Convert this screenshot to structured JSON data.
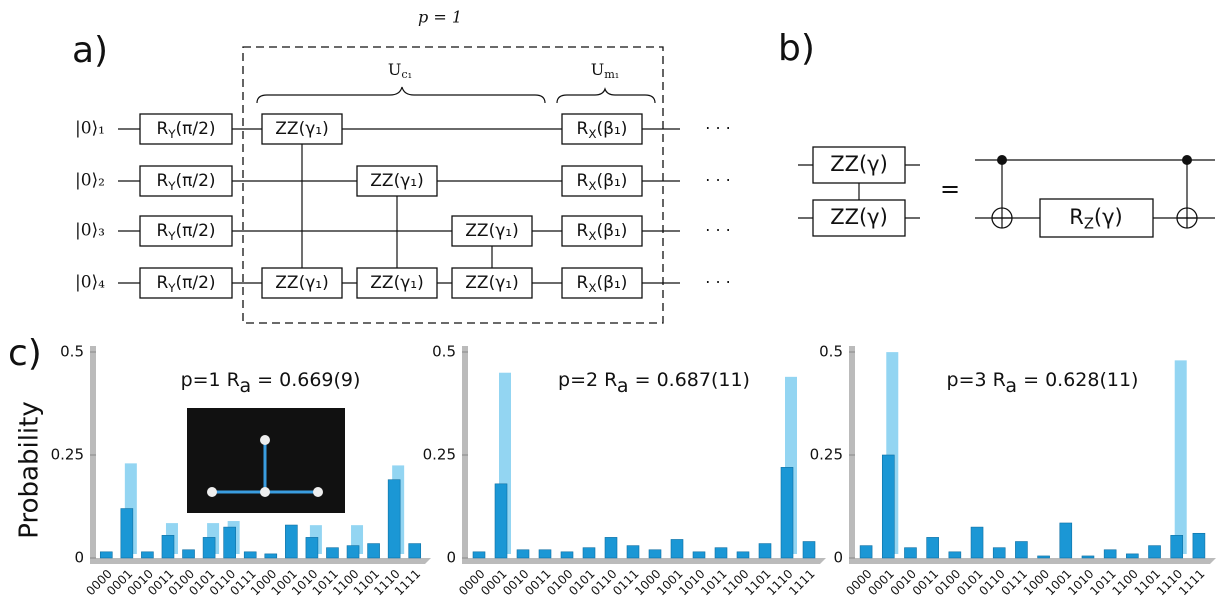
{
  "panels": {
    "a": "a)",
    "b": "b)",
    "c": "c)"
  },
  "circuit": {
    "p_label": "p = 1",
    "uc": {
      "base": "U",
      "sub": "c₁"
    },
    "um": {
      "base": "U",
      "sub": "m₁"
    },
    "qubits": [
      "|0⟩₁",
      "|0⟩₂",
      "|0⟩₃",
      "|0⟩₄"
    ],
    "ry": {
      "base": "R",
      "sub": "Y",
      "arg": "(π/2)"
    },
    "zz": "ZZ(γ₁)",
    "rx": {
      "base": "R",
      "sub": "X",
      "arg": "(β₁)"
    },
    "ellipsis": "· · ·"
  },
  "identity": {
    "zz": "ZZ(γ)",
    "equals": "=",
    "rz": {
      "base": "R",
      "sub": "Z",
      "arg": "(γ)"
    }
  },
  "chart_data": [
    {
      "type": "bar",
      "title": {
        "prefix": "p=1  R",
        "sub": "a",
        "suffix": " = 0.669(9)"
      },
      "ylabel": "Probability",
      "categories": [
        "0000",
        "0001",
        "0010",
        "0011",
        "0100",
        "0101",
        "0110",
        "0111",
        "1000",
        "1001",
        "1010",
        "1011",
        "1100",
        "1101",
        "1110",
        "1111"
      ],
      "series": [
        {
          "color": "#93d5f2",
          "values": [
            0,
            0.22,
            0,
            0.075,
            0,
            0.075,
            0.08,
            0,
            0,
            0,
            0.07,
            0,
            0.07,
            0,
            0.215,
            0
          ]
        },
        {
          "color": "#1b97d5",
          "values": [
            0.015,
            0.12,
            0.015,
            0.055,
            0.02,
            0.05,
            0.075,
            0.015,
            0.01,
            0.08,
            0.05,
            0.025,
            0.03,
            0.035,
            0.19,
            0.035
          ]
        }
      ],
      "ylim": [
        0,
        0.5
      ],
      "yticks": [
        0,
        0.25,
        0.5
      ]
    },
    {
      "type": "bar",
      "title": {
        "prefix": "p=2  R",
        "sub": "a",
        "suffix": " = 0.687(11)"
      },
      "categories": [
        "0000",
        "0001",
        "0010",
        "0011",
        "0100",
        "0101",
        "0110",
        "0111",
        "1000",
        "1001",
        "1010",
        "1011",
        "1100",
        "1101",
        "1110",
        "1111"
      ],
      "series": [
        {
          "color": "#93d5f2",
          "values": [
            0,
            0.44,
            0,
            0,
            0,
            0,
            0,
            0,
            0,
            0,
            0,
            0,
            0,
            0,
            0.43,
            0
          ]
        },
        {
          "color": "#1b97d5",
          "values": [
            0.015,
            0.18,
            0.02,
            0.02,
            0.015,
            0.025,
            0.05,
            0.03,
            0.02,
            0.045,
            0.015,
            0.025,
            0.015,
            0.035,
            0.22,
            0.04
          ]
        }
      ],
      "ylim": [
        0,
        0.5
      ],
      "yticks": [
        0,
        0.25,
        0.5
      ]
    },
    {
      "type": "bar",
      "title": {
        "prefix": "p=3  R",
        "sub": "a",
        "suffix": " = 0.628(11)"
      },
      "categories": [
        "0000",
        "0001",
        "0010",
        "0011",
        "0100",
        "0101",
        "0110",
        "0111",
        "1000",
        "1001",
        "1010",
        "1011",
        "1100",
        "1101",
        "1110",
        "1111"
      ],
      "series": [
        {
          "color": "#93d5f2",
          "values": [
            0,
            0.49,
            0,
            0,
            0,
            0,
            0,
            0,
            0,
            0,
            0,
            0,
            0,
            0,
            0.47,
            0
          ]
        },
        {
          "color": "#1b97d5",
          "values": [
            0.03,
            0.25,
            0.025,
            0.05,
            0.015,
            0.075,
            0.025,
            0.04,
            0.005,
            0.085,
            0.005,
            0.02,
            0.01,
            0.03,
            0.055,
            0.06
          ]
        }
      ],
      "ylim": [
        0,
        0.5
      ],
      "yticks": [
        0,
        0.25,
        0.5
      ]
    }
  ]
}
